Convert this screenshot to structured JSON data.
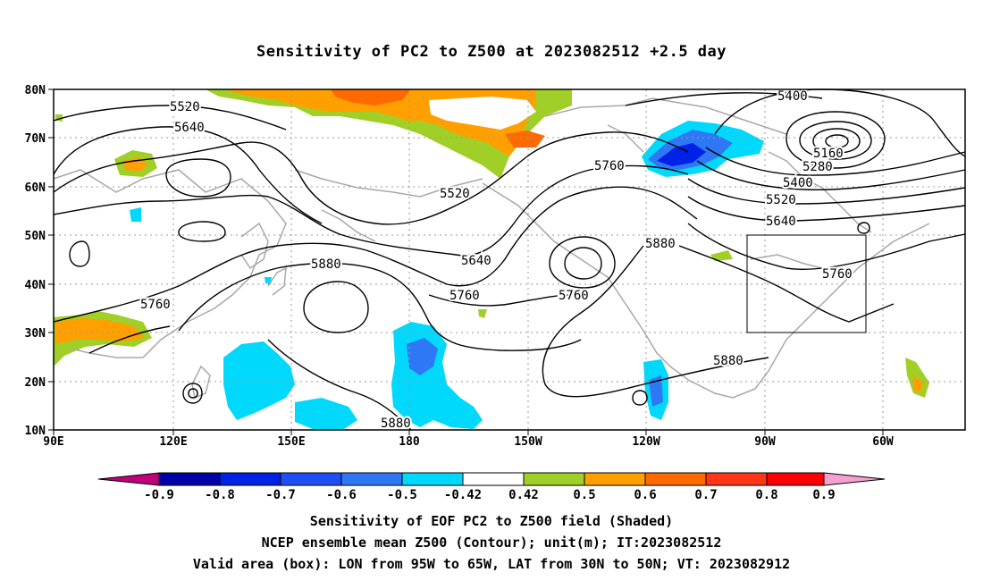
{
  "title": "Sensitivity of PC2 to Z500 at 2023082512 +2.5 day",
  "map": {
    "lat_labels": [
      "80N",
      "70N",
      "60N",
      "50N",
      "40N",
      "30N",
      "20N",
      "10N"
    ],
    "lon_labels": [
      "90E",
      "120E",
      "150E",
      "180",
      "150W",
      "120W",
      "90W",
      "60W"
    ],
    "contour_labels": [
      {
        "text": "5520"
      },
      {
        "text": "5640"
      },
      {
        "text": "5520"
      },
      {
        "text": "5760"
      },
      {
        "text": "5400"
      },
      {
        "text": "5160"
      },
      {
        "text": "5280"
      },
      {
        "text": "5400"
      },
      {
        "text": "5520"
      },
      {
        "text": "5640"
      },
      {
        "text": "5880"
      },
      {
        "text": "5640"
      },
      {
        "text": "5880"
      },
      {
        "text": "5760"
      },
      {
        "text": "5760"
      },
      {
        "text": "5760"
      },
      {
        "text": "5760"
      },
      {
        "text": "5880"
      },
      {
        "text": "5880"
      }
    ],
    "valid_box": {
      "lon_min": -95,
      "lon_max": -65,
      "lat_min": 30,
      "lat_max": 50
    }
  },
  "colorbar": {
    "labels": [
      "-0.9",
      "-0.8",
      "-0.7",
      "-0.6",
      "-0.5",
      "-0.42",
      "0.42",
      "0.5",
      "0.6",
      "0.7",
      "0.8",
      "0.9"
    ],
    "colors": {
      "lt_neg": "#c0007a",
      "seg": [
        "#0000a8",
        "#0022e6",
        "#1e4ff6",
        "#2f78f5",
        "#17b7f0",
        "#00d8fc",
        "#ffffff",
        "#a0d028",
        "#ff9f00",
        "#ff6a00",
        "#ff3518",
        "#ff0000"
      ],
      "gt_pos": "#f5a0d0"
    }
  },
  "captions": [
    "Sensitivity of EOF PC2 to Z500 field (Shaded)",
    "NCEP ensemble mean Z500 (Contour); unit(m); IT:2023082512",
    "Valid area (box): LON from 95W to 65W, LAT from 30N to 50N; VT: 2023082912"
  ]
}
